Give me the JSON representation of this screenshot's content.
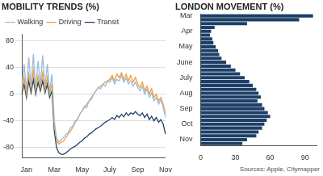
{
  "chart_data": [
    {
      "type": "line",
      "title": "MOBILITY TRENDS (%)",
      "categories": [
        null,
        null,
        "Jan",
        null,
        null,
        null,
        null,
        null,
        null,
        null,
        null,
        null,
        null,
        null,
        "Mar",
        null,
        null,
        null,
        null,
        null,
        null,
        null,
        null,
        null,
        null,
        null,
        "May",
        null,
        null,
        null,
        null,
        null,
        null,
        null,
        null,
        null,
        null,
        null,
        "July",
        null,
        null,
        null,
        null,
        null,
        null,
        null,
        null,
        null,
        null,
        null,
        "Sep",
        null,
        null,
        null,
        null,
        null,
        null,
        null,
        null,
        null,
        null,
        null,
        "Nov"
      ],
      "series": [
        {
          "name": "Walking",
          "color": "#9bbbd9",
          "values": [
            10,
            45,
            5,
            55,
            12,
            60,
            8,
            50,
            15,
            58,
            10,
            45,
            5,
            30,
            -40,
            -65,
            -72,
            -68,
            -65,
            -60,
            -58,
            -50,
            -48,
            -40,
            -38,
            -30,
            -25,
            -18,
            -20,
            -10,
            -8,
            0,
            5,
            10,
            8,
            15,
            12,
            20,
            18,
            25,
            15,
            22,
            20,
            28,
            18,
            24,
            15,
            20,
            12,
            18,
            10,
            5,
            12,
            0,
            8,
            -5,
            2,
            -10,
            -5,
            -15,
            -8,
            -20,
            -35
          ]
        },
        {
          "name": "Driving",
          "color": "#f39c33",
          "values": [
            5,
            25,
            0,
            30,
            8,
            35,
            5,
            28,
            10,
            32,
            6,
            25,
            0,
            15,
            -45,
            -70,
            -75,
            -72,
            -70,
            -65,
            -60,
            -55,
            -50,
            -42,
            -38,
            -30,
            -25,
            -20,
            -15,
            -10,
            -5,
            0,
            5,
            10,
            12,
            15,
            18,
            20,
            22,
            28,
            20,
            30,
            25,
            32,
            22,
            30,
            20,
            28,
            18,
            25,
            15,
            10,
            18,
            5,
            12,
            0,
            8,
            -5,
            0,
            -10,
            -5,
            -15,
            -30
          ]
        },
        {
          "name": "Transit",
          "color": "#1d3f66",
          "values": [
            0,
            15,
            -5,
            20,
            2,
            22,
            0,
            18,
            5,
            20,
            2,
            15,
            -5,
            5,
            -55,
            -80,
            -88,
            -90,
            -90,
            -88,
            -85,
            -82,
            -80,
            -78,
            -75,
            -72,
            -70,
            -66,
            -64,
            -60,
            -58,
            -55,
            -52,
            -50,
            -48,
            -45,
            -42,
            -40,
            -38,
            -35,
            -38,
            -32,
            -35,
            -30,
            -34,
            -28,
            -32,
            -28,
            -30,
            -26,
            -30,
            -32,
            -28,
            -35,
            -30,
            -38,
            -33,
            -40,
            -35,
            -42,
            -38,
            -45,
            -60
          ]
        }
      ],
      "ylim": [
        -95,
        90
      ],
      "yticks": [
        -80,
        -40,
        0,
        40,
        80
      ],
      "grid": true,
      "legend": "top"
    },
    {
      "type": "bar",
      "title": "LONDON MOVEMENT (%)",
      "orientation": "horizontal",
      "categories": [
        "Mar",
        null,
        null,
        null,
        "Apr",
        null,
        null,
        null,
        "May",
        null,
        null,
        null,
        "June",
        null,
        null,
        null,
        "July",
        null,
        null,
        null,
        "Aug",
        null,
        null,
        null,
        "Sep",
        null,
        null,
        null,
        "Oct",
        null,
        null,
        null,
        "Nov",
        null
      ],
      "values": [
        97,
        85,
        40,
        12,
        9,
        8,
        10,
        11,
        13,
        15,
        16,
        18,
        22,
        26,
        30,
        34,
        38,
        42,
        45,
        48,
        50,
        52,
        49,
        53,
        55,
        58,
        60,
        57,
        55,
        53,
        50,
        48,
        40,
        36
      ],
      "color": "#1d3f66",
      "xlim": [
        0,
        100
      ],
      "xticks": [
        0,
        30,
        60,
        90
      ],
      "grid": false
    }
  ],
  "source": "Sources: Apple, Citymapper"
}
